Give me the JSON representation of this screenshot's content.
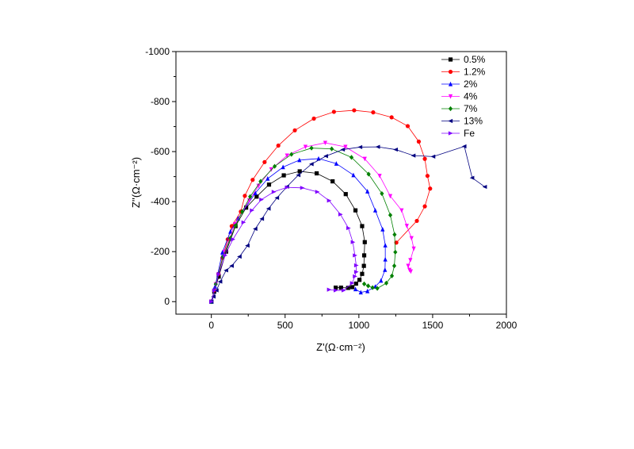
{
  "chart_data": {
    "type": "scatter",
    "xlabel": "Z'(Ω·cm⁻²)",
    "ylabel": "Z''(Ω·cm⁻²)",
    "xlim": [
      -240,
      2000
    ],
    "ylim": [
      50,
      -1000
    ],
    "y_inverted": true,
    "xticks": [
      0,
      500,
      1000,
      1500,
      2000
    ],
    "yticks": [
      0,
      -200,
      -400,
      -600,
      -800,
      -1000
    ],
    "xtick_labels": [
      "0",
      "500",
      "1000",
      "1500",
      "2000"
    ],
    "ytick_labels": [
      "0",
      "-200",
      "-400",
      "-600",
      "-800",
      "-1000"
    ],
    "grid": false,
    "legend_position": "top-right",
    "series": [
      {
        "name": "0.5%",
        "color": "#000000",
        "marker": "square",
        "x": [
          0,
          20,
          50,
          100,
          164,
          236,
          307,
          391,
          491,
          599,
          714,
          822,
          911,
          977,
          1022,
          1040,
          1036,
          1034,
          1022,
          1004,
          981,
          956,
          927,
          879,
          843
        ],
        "y": [
          0,
          -40,
          -100,
          -200,
          -302,
          -376,
          -420,
          -468,
          -505,
          -521,
          -513,
          -481,
          -430,
          -365,
          -302,
          -238,
          -185,
          -143,
          -111,
          -87,
          -72,
          -58,
          -55,
          -56,
          -56
        ]
      },
      {
        "name": "1.2%",
        "color": "#ff0000",
        "marker": "circle",
        "x": [
          0,
          20,
          48,
          75,
          111,
          138,
          200,
          227,
          280,
          361,
          454,
          566,
          695,
          831,
          968,
          1097,
          1222,
          1331,
          1406,
          1447,
          1465,
          1483,
          1447,
          1393,
          1254
        ],
        "y": [
          0,
          -45,
          -111,
          -175,
          -249,
          -302,
          -360,
          -423,
          -487,
          -558,
          -624,
          -685,
          -732,
          -759,
          -765,
          -757,
          -737,
          -702,
          -640,
          -571,
          -503,
          -452,
          -381,
          -323,
          -236
        ]
      },
      {
        "name": "2%",
        "color": "#0000ff",
        "marker": "triangle-up",
        "x": [
          0,
          25,
          75,
          129,
          182,
          298,
          382,
          486,
          597,
          727,
          847,
          963,
          1058,
          1111,
          1161,
          1179,
          1179,
          1177,
          1150,
          1111,
          1058,
          1013,
          977
        ],
        "y": [
          0,
          -60,
          -197,
          -280,
          -333,
          -434,
          -492,
          -538,
          -566,
          -572,
          -552,
          -506,
          -441,
          -365,
          -289,
          -225,
          -169,
          -127,
          -84,
          -60,
          -42,
          -37,
          -50
        ]
      },
      {
        "name": "4%",
        "color": "#ff00ff",
        "marker": "triangle-down",
        "x": [
          0,
          30,
          90,
          160,
          257,
          320,
          406,
          513,
          638,
          772,
          909,
          1040,
          1141,
          1213,
          1290,
          1325,
          1357,
          1372,
          1349,
          1334,
          1343,
          1352
        ],
        "y": [
          0,
          -70,
          -200,
          -310,
          -405,
          -463,
          -529,
          -584,
          -619,
          -635,
          -619,
          -571,
          -503,
          -422,
          -365,
          -303,
          -254,
          -212,
          -166,
          -143,
          -127,
          -121
        ]
      },
      {
        "name": "7%",
        "color": "#008000",
        "marker": "diamond",
        "x": [
          0,
          30,
          80,
          129,
          164,
          209,
          263,
          334,
          429,
          543,
          679,
          816,
          950,
          1066,
          1156,
          1213,
          1242,
          1247,
          1240,
          1224,
          1186,
          1125,
          1093,
          1063,
          1036
        ],
        "y": [
          0,
          -70,
          -180,
          -254,
          -304,
          -360,
          -420,
          -481,
          -541,
          -589,
          -614,
          -611,
          -577,
          -510,
          -432,
          -346,
          -268,
          -198,
          -143,
          -103,
          -74,
          -53,
          -56,
          -63,
          -71
        ]
      },
      {
        "name": "13%",
        "color": "#000080",
        "marker": "triangle-left",
        "x": [
          0,
          15,
          35,
          60,
          100,
          138,
          191,
          245,
          298,
          343,
          388,
          445,
          513,
          590,
          679,
          777,
          891,
          1009,
          1129,
          1250,
          1370,
          1504,
          1715,
          1768,
          1854
        ],
        "y": [
          0,
          -20,
          -45,
          -80,
          -125,
          -143,
          -180,
          -224,
          -291,
          -331,
          -372,
          -415,
          -460,
          -506,
          -550,
          -582,
          -608,
          -618,
          -619,
          -608,
          -584,
          -580,
          -621,
          -495,
          -459
        ]
      },
      {
        "name": "Fe",
        "color": "#8000ff",
        "marker": "triangle-right",
        "x": [
          0,
          20,
          50,
          93,
          146,
          218,
          275,
          339,
          423,
          513,
          616,
          718,
          798,
          875,
          929,
          959,
          973,
          982,
          982,
          973,
          954,
          897,
          843,
          798
        ],
        "y": [
          0,
          -45,
          -110,
          -185,
          -249,
          -317,
          -365,
          -408,
          -439,
          -457,
          -455,
          -439,
          -404,
          -349,
          -294,
          -238,
          -185,
          -145,
          -119,
          -101,
          -74,
          -45,
          -45,
          -48
        ]
      }
    ]
  }
}
